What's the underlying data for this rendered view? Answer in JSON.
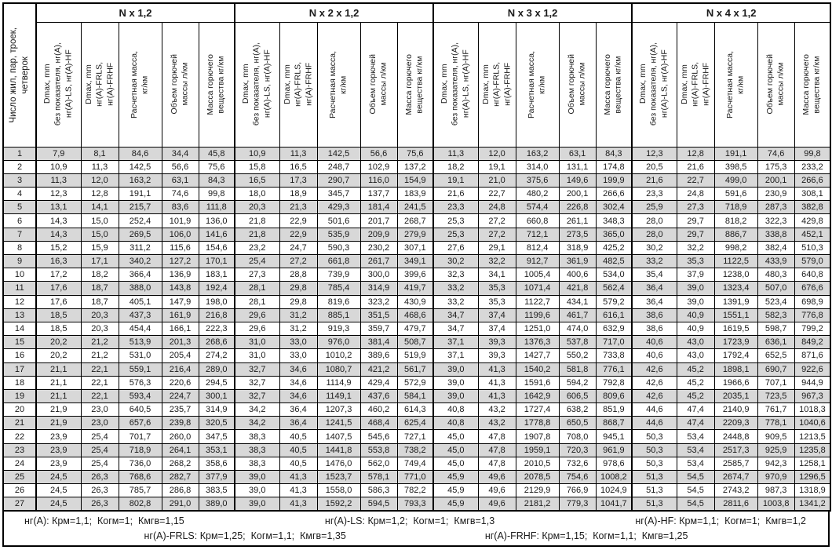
{
  "table": {
    "row_header": "Число жил, пар, троек,\nчетверок",
    "groups": [
      {
        "label": "N x 1,2"
      },
      {
        "label": "N x 2 x 1,2"
      },
      {
        "label": "N x 3 x 1,2"
      },
      {
        "label": "N x 4 x 1,2"
      }
    ],
    "sub_headers": [
      "Dmax, mm\nбез показателя, нг(А),\nнг(А)-LS, нг(А)-HF",
      "Dmax, mm\nнг(А)-FRLS,\nнг(А)-FRHF",
      "Расчетная масса,\nкг/км",
      "Объем горючей\nмассы л/км",
      "Масса горючего\nвещества кг/км"
    ],
    "rows": [
      [
        "1",
        "7,9",
        "8,1",
        "84,6",
        "34,4",
        "45,8",
        "10,9",
        "11,3",
        "142,5",
        "56,6",
        "75,6",
        "11,3",
        "12,0",
        "163,2",
        "63,1",
        "84,3",
        "12,3",
        "12,8",
        "191,1",
        "74,6",
        "99,8"
      ],
      [
        "2",
        "10,9",
        "11,3",
        "142,5",
        "56,6",
        "75,6",
        "15,8",
        "16,5",
        "248,7",
        "102,9",
        "137,2",
        "18,2",
        "19,1",
        "314,0",
        "131,1",
        "174,8",
        "20,5",
        "21,6",
        "398,5",
        "175,3",
        "233,2"
      ],
      [
        "3",
        "11,3",
        "12,0",
        "163,2",
        "63,1",
        "84,3",
        "16,5",
        "17,3",
        "290,7",
        "116,0",
        "154,9",
        "19,1",
        "21,0",
        "375,6",
        "149,6",
        "199,9",
        "21,6",
        "22,7",
        "499,0",
        "200,1",
        "266,6"
      ],
      [
        "4",
        "12,3",
        "12,8",
        "191,1",
        "74,6",
        "99,8",
        "18,0",
        "18,9",
        "345,7",
        "137,7",
        "183,9",
        "21,6",
        "22,7",
        "480,2",
        "200,1",
        "266,6",
        "23,3",
        "24,8",
        "591,6",
        "230,9",
        "308,1"
      ],
      [
        "5",
        "13,1",
        "14,1",
        "215,7",
        "83,6",
        "111,8",
        "20,3",
        "21,3",
        "429,3",
        "181,4",
        "241,5",
        "23,3",
        "24,8",
        "574,4",
        "226,8",
        "302,4",
        "25,9",
        "27,3",
        "718,9",
        "287,3",
        "382,8"
      ],
      [
        "6",
        "14,3",
        "15,0",
        "252,4",
        "101,9",
        "136,0",
        "21,8",
        "22,9",
        "501,6",
        "201,7",
        "268,7",
        "25,3",
        "27,2",
        "660,8",
        "261,1",
        "348,3",
        "28,0",
        "29,7",
        "818,2",
        "322,3",
        "429,8"
      ],
      [
        "7",
        "14,3",
        "15,0",
        "269,5",
        "106,0",
        "141,6",
        "21,8",
        "22,9",
        "535,9",
        "209,9",
        "279,9",
        "25,3",
        "27,2",
        "712,1",
        "273,5",
        "365,0",
        "28,0",
        "29,7",
        "886,7",
        "338,8",
        "452,1"
      ],
      [
        "8",
        "15,2",
        "15,9",
        "311,2",
        "115,6",
        "154,6",
        "23,2",
        "24,7",
        "590,3",
        "230,2",
        "307,1",
        "27,6",
        "29,1",
        "812,4",
        "318,9",
        "425,2",
        "30,2",
        "32,2",
        "998,2",
        "382,4",
        "510,3"
      ],
      [
        "9",
        "16,3",
        "17,1",
        "340,2",
        "127,2",
        "170,1",
        "25,4",
        "27,2",
        "661,8",
        "261,7",
        "349,1",
        "30,2",
        "32,2",
        "912,7",
        "361,9",
        "482,5",
        "33,2",
        "35,3",
        "1122,5",
        "433,9",
        "579,0"
      ],
      [
        "10",
        "17,2",
        "18,2",
        "366,4",
        "136,9",
        "183,1",
        "27,3",
        "28,8",
        "739,9",
        "300,0",
        "399,6",
        "32,3",
        "34,1",
        "1005,4",
        "400,6",
        "534,0",
        "35,4",
        "37,9",
        "1238,0",
        "480,3",
        "640,8"
      ],
      [
        "11",
        "17,6",
        "18,7",
        "388,0",
        "143,8",
        "192,4",
        "28,1",
        "29,8",
        "785,4",
        "314,9",
        "419,7",
        "33,2",
        "35,3",
        "1071,4",
        "421,8",
        "562,4",
        "36,4",
        "39,0",
        "1323,4",
        "507,0",
        "676,6"
      ],
      [
        "12",
        "17,6",
        "18,7",
        "405,1",
        "147,9",
        "198,0",
        "28,1",
        "29,8",
        "819,6",
        "323,2",
        "430,9",
        "33,2",
        "35,3",
        "1122,7",
        "434,1",
        "579,2",
        "36,4",
        "39,0",
        "1391,9",
        "523,4",
        "698,9"
      ],
      [
        "13",
        "18,5",
        "20,3",
        "437,3",
        "161,9",
        "216,8",
        "29,6",
        "31,2",
        "885,1",
        "351,5",
        "468,6",
        "34,7",
        "37,4",
        "1199,6",
        "461,7",
        "616,1",
        "38,6",
        "40,9",
        "1551,1",
        "582,3",
        "776,8"
      ],
      [
        "14",
        "18,5",
        "20,3",
        "454,4",
        "166,1",
        "222,3",
        "29,6",
        "31,2",
        "919,3",
        "359,7",
        "479,7",
        "34,7",
        "37,4",
        "1251,0",
        "474,0",
        "632,9",
        "38,6",
        "40,9",
        "1619,5",
        "598,7",
        "799,2"
      ],
      [
        "15",
        "20,2",
        "21,2",
        "513,9",
        "201,3",
        "268,6",
        "31,0",
        "33,0",
        "976,0",
        "381,4",
        "508,7",
        "37,1",
        "39,3",
        "1376,3",
        "537,8",
        "717,0",
        "40,6",
        "43,0",
        "1723,9",
        "636,1",
        "849,2"
      ],
      [
        "16",
        "20,2",
        "21,2",
        "531,0",
        "205,4",
        "274,2",
        "31,0",
        "33,0",
        "1010,2",
        "389,6",
        "519,9",
        "37,1",
        "39,3",
        "1427,7",
        "550,2",
        "733,8",
        "40,6",
        "43,0",
        "1792,4",
        "652,5",
        "871,6"
      ],
      [
        "17",
        "21,1",
        "22,1",
        "559,1",
        "216,4",
        "289,0",
        "32,7",
        "34,6",
        "1080,7",
        "421,2",
        "561,7",
        "39,0",
        "41,3",
        "1540,2",
        "581,8",
        "776,1",
        "42,6",
        "45,2",
        "1898,1",
        "690,7",
        "922,6"
      ],
      [
        "18",
        "21,1",
        "22,1",
        "576,3",
        "220,6",
        "294,5",
        "32,7",
        "34,6",
        "1114,9",
        "429,4",
        "572,9",
        "39,0",
        "41,3",
        "1591,6",
        "594,2",
        "792,8",
        "42,6",
        "45,2",
        "1966,6",
        "707,1",
        "944,9"
      ],
      [
        "19",
        "21,1",
        "22,1",
        "593,4",
        "224,7",
        "300,1",
        "32,7",
        "34,6",
        "1149,1",
        "437,6",
        "584,1",
        "39,0",
        "41,3",
        "1642,9",
        "606,5",
        "809,6",
        "42,6",
        "45,2",
        "2035,1",
        "723,5",
        "967,3"
      ],
      [
        "20",
        "21,9",
        "23,0",
        "640,5",
        "235,7",
        "314,9",
        "34,2",
        "36,4",
        "1207,3",
        "460,2",
        "614,3",
        "40,8",
        "43,2",
        "1727,4",
        "638,2",
        "851,9",
        "44,6",
        "47,4",
        "2140,9",
        "761,7",
        "1018,3"
      ],
      [
        "21",
        "21,9",
        "23,0",
        "657,6",
        "239,8",
        "320,5",
        "34,2",
        "36,4",
        "1241,5",
        "468,4",
        "625,4",
        "40,8",
        "43,2",
        "1778,8",
        "650,5",
        "868,7",
        "44,6",
        "47,4",
        "2209,3",
        "778,1",
        "1040,6"
      ],
      [
        "22",
        "23,9",
        "25,4",
        "701,7",
        "260,0",
        "347,5",
        "38,3",
        "40,5",
        "1407,5",
        "545,6",
        "727,1",
        "45,0",
        "47,8",
        "1907,8",
        "708,0",
        "945,1",
        "50,3",
        "53,4",
        "2448,8",
        "909,5",
        "1213,5"
      ],
      [
        "23",
        "23,9",
        "25,4",
        "718,9",
        "264,1",
        "353,1",
        "38,3",
        "40,5",
        "1441,8",
        "553,8",
        "738,2",
        "45,0",
        "47,8",
        "1959,1",
        "720,3",
        "961,9",
        "50,3",
        "53,4",
        "2517,3",
        "925,9",
        "1235,8"
      ],
      [
        "24",
        "23,9",
        "25,4",
        "736,0",
        "268,2",
        "358,6",
        "38,3",
        "40,5",
        "1476,0",
        "562,0",
        "749,4",
        "45,0",
        "47,8",
        "2010,5",
        "732,6",
        "978,6",
        "50,3",
        "53,4",
        "2585,7",
        "942,3",
        "1258,1"
      ],
      [
        "25",
        "24,5",
        "26,3",
        "768,6",
        "282,7",
        "377,9",
        "39,0",
        "41,3",
        "1523,7",
        "578,1",
        "771,0",
        "45,9",
        "49,6",
        "2078,5",
        "754,6",
        "1008,2",
        "51,3",
        "54,5",
        "2674,7",
        "970,9",
        "1296,5"
      ],
      [
        "26",
        "24,5",
        "26,3",
        "785,7",
        "286,8",
        "383,5",
        "39,0",
        "41,3",
        "1558,0",
        "586,3",
        "782,2",
        "45,9",
        "49,6",
        "2129,9",
        "766,9",
        "1024,9",
        "51,3",
        "54,5",
        "2743,2",
        "987,3",
        "1318,9"
      ],
      [
        "27",
        "24,5",
        "26,3",
        "802,8",
        "291,0",
        "389,0",
        "39,0",
        "41,3",
        "1592,2",
        "594,5",
        "793,3",
        "45,9",
        "49,6",
        "2181,2",
        "779,3",
        "1041,7",
        "51,3",
        "54,5",
        "2811,6",
        "1003,8",
        "1341,2"
      ]
    ]
  },
  "footer": {
    "line1": [
      "нг(А): Крм=1,1;  Когм=1;  Кмгв=1,15",
      "нг(А)-LS: Крм=1,2;  Когм=1;  Кмгв=1,3",
      "нг(А)-HF: Крм=1,1;  Когм=1;  Кмгв=1,2"
    ],
    "line2": [
      "нг(А)-FRLS: Крм=1,25;  Когм=1,1;  Кмгв=1,35",
      "нг(А)-FRHF: Крм=1,15;  Когм=1,1;  Кмгв=1,25"
    ]
  },
  "colors": {
    "stripe": "#d8d8d8",
    "border": "#000000",
    "background": "#ffffff"
  }
}
